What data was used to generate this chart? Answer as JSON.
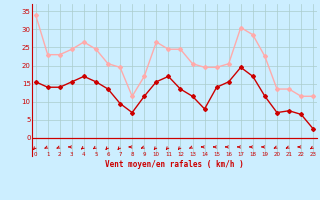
{
  "x": [
    0,
    1,
    2,
    3,
    4,
    5,
    6,
    7,
    8,
    9,
    10,
    11,
    12,
    13,
    14,
    15,
    16,
    17,
    18,
    19,
    20,
    21,
    22,
    23
  ],
  "wind_avg": [
    15.5,
    14,
    14,
    15.5,
    17,
    15.5,
    13.5,
    9.5,
    7,
    11.5,
    15.5,
    17,
    13.5,
    11.5,
    8,
    14,
    15.5,
    19.5,
    17,
    11.5,
    7,
    7.5,
    6.5,
    2.5
  ],
  "wind_gust": [
    34,
    23,
    23,
    24.5,
    26.5,
    24.5,
    20.5,
    19.5,
    11.5,
    17,
    26.5,
    24.5,
    24.5,
    20.5,
    19.5,
    19.5,
    20.5,
    30.5,
    28.5,
    22.5,
    13.5,
    13.5,
    11.5,
    11.5
  ],
  "avg_color": "#cc0000",
  "gust_color": "#ffaaaa",
  "bg_color": "#cceeff",
  "grid_color": "#aacccc",
  "xlabel": "Vent moyen/en rafales ( km/h )",
  "xlabel_color": "#cc0000",
  "yticks": [
    0,
    5,
    10,
    15,
    20,
    25,
    30,
    35
  ],
  "ylim": [
    -5,
    37
  ],
  "xlim": [
    -0.3,
    23.3
  ],
  "tick_color": "#cc0000",
  "spine_color": "#cc0000"
}
